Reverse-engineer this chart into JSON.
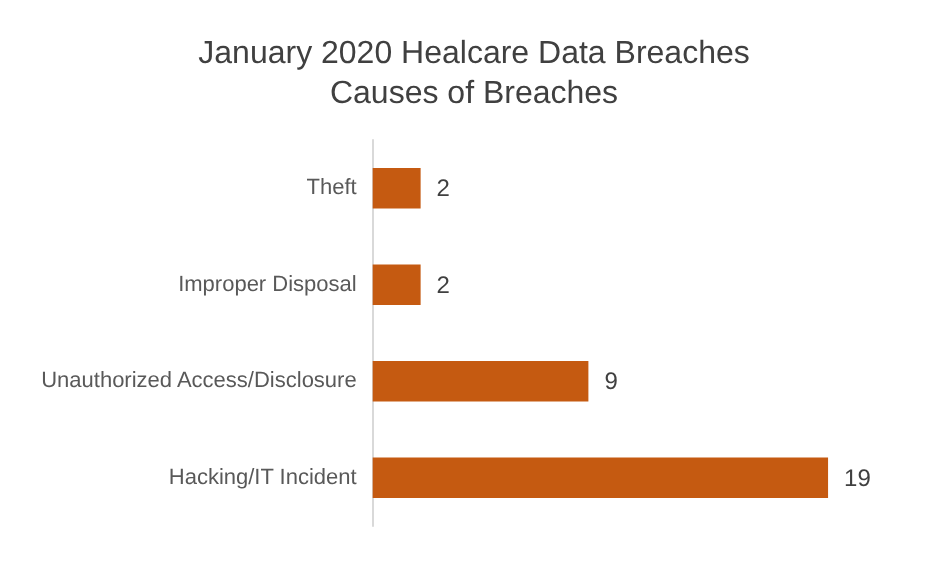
{
  "chart_data": {
    "type": "bar",
    "title": "January 2020 Healcare Data Breaches",
    "subtitle": "Causes of Breaches",
    "orientation": "horizontal",
    "categories": [
      "Theft",
      "Improper Disposal",
      "Unauthorized Access/Disclosure",
      "Hacking/IT Incident"
    ],
    "values": [
      2,
      2,
      9,
      19
    ],
    "color": "#c55a11",
    "data_labels": true,
    "grid": false
  }
}
